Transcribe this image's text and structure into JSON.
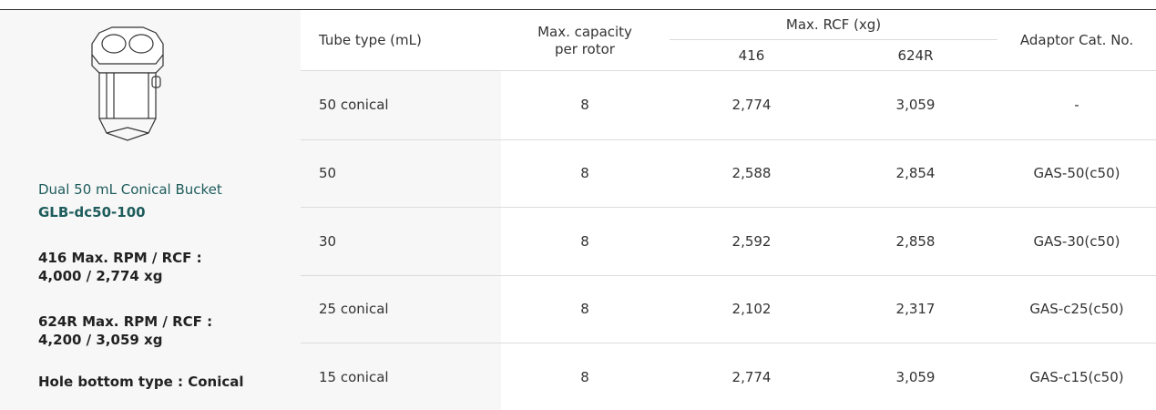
{
  "product": {
    "name": "Dual 50 mL Conical Bucket",
    "code": "GLB-dc50-100",
    "specs": [
      "416 Max. RPM / RCF :",
      "4,000 / 2,774 xg",
      "624R Max. RPM / RCF :",
      "4,200 / 3,059 xg",
      "Hole bottom type : Conical"
    ]
  },
  "table": {
    "headers": {
      "tube_type": "Tube type (mL)",
      "capacity": [
        "Max. capacity",
        "per rotor"
      ],
      "rcf": "Max. RCF (xg)",
      "rcf_sub": [
        "416",
        "624R"
      ],
      "adaptor": "Adaptor Cat. No."
    },
    "rows": [
      [
        "50 conical",
        "8",
        "2,774",
        "3,059",
        "-"
      ],
      [
        "50",
        "8",
        "2,588",
        "2,854",
        "GAS-50(c50)"
      ],
      [
        "30",
        "8",
        "2,592",
        "2,858",
        "GAS-30(c50)"
      ],
      [
        "25 conical",
        "8",
        "2,102",
        "2,317",
        "GAS-c25(c50)"
      ],
      [
        "15 conical",
        "8",
        "2,774",
        "3,059",
        "GAS-c15(c50)"
      ]
    ]
  }
}
